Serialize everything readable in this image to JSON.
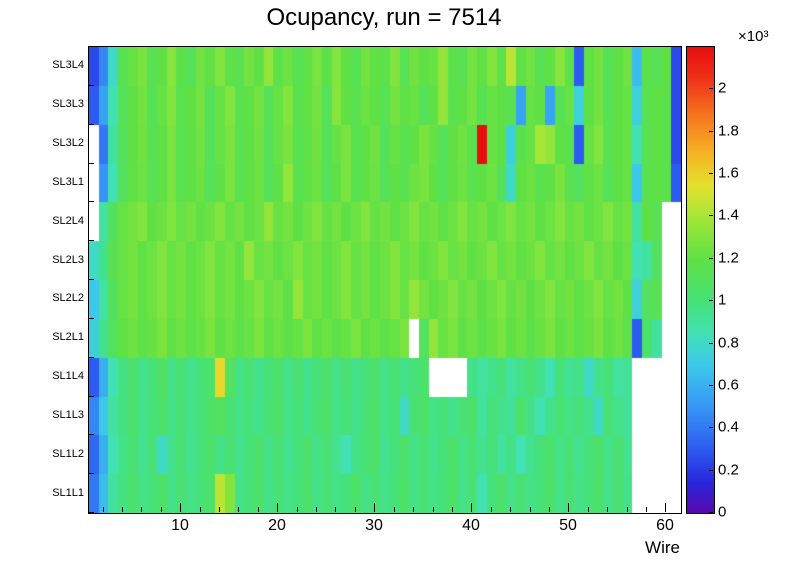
{
  "chart_data": {
    "type": "heatmap",
    "title": "Ocupancy, run = 7514",
    "xlabel": "Wire",
    "ylabel": "",
    "x_range": [
      0.5,
      61.5
    ],
    "n_wires": 61,
    "x_major_ticks": [
      10,
      20,
      30,
      40,
      50,
      60
    ],
    "x_minor_tick_step": 2,
    "y_categories_top_to_bottom": [
      "SL3L4",
      "SL3L3",
      "SL3L2",
      "SL3L1",
      "SL2L4",
      "SL2L3",
      "SL2L2",
      "SL2L1",
      "SL1L4",
      "SL1L3",
      "SL1L2",
      "SL1L1"
    ],
    "z_range": [
      0,
      2.2
    ],
    "z_exponent": "×10³",
    "values_scale": 1000,
    "colorbar_tick_values": [
      0,
      0.2,
      0.4,
      0.6,
      0.8,
      1,
      1.2,
      1.4,
      1.6,
      1.8,
      2
    ],
    "colorbar_tick_labels": [
      "0",
      "0.2",
      "0.4",
      "0.6",
      "0.8",
      "1",
      "1.2",
      "1.4",
      "1.6",
      "1.8",
      "2"
    ],
    "legend_position": "right-colorbar",
    "grid": false,
    "empty_bin_color": "#ffffff",
    "palette_stops": [
      [
        0.0,
        "#5A08AA"
      ],
      [
        0.15,
        "#2828DC"
      ],
      [
        0.3,
        "#2D5AF0"
      ],
      [
        0.5,
        "#3796F5"
      ],
      [
        0.7,
        "#3CC8EB"
      ],
      [
        0.85,
        "#41E1B4"
      ],
      [
        1.0,
        "#46E178"
      ],
      [
        1.2,
        "#5FE146"
      ],
      [
        1.4,
        "#A5E637"
      ],
      [
        1.55,
        "#E6E12D"
      ],
      [
        1.7,
        "#F5B423"
      ],
      [
        1.9,
        "#F56E1E"
      ],
      [
        2.05,
        "#F03219"
      ],
      [
        2.2,
        "#E60F0F"
      ]
    ],
    "matrix": {
      "SL3L4": [
        0.25,
        0.45,
        0.8,
        1.15,
        1.22,
        1.28,
        1.15,
        1.2,
        1.32,
        1.18,
        1.12,
        1.25,
        1.2,
        1.3,
        1.18,
        1.15,
        1.26,
        1.2,
        1.35,
        1.18,
        1.24,
        1.14,
        1.2,
        1.27,
        1.18,
        1.3,
        1.2,
        1.14,
        1.26,
        1.2,
        1.18,
        1.3,
        1.14,
        1.25,
        1.2,
        1.22,
        1.35,
        1.18,
        1.14,
        1.26,
        1.2,
        1.3,
        1.18,
        1.45,
        1.2,
        1.26,
        1.14,
        1.2,
        1.32,
        1.18,
        0.3,
        1.2,
        1.26,
        1.14,
        1.2,
        1.25,
        0.65,
        1.18,
        1.14,
        1.2,
        0.25
      ],
      "SL3L3": [
        0.3,
        0.55,
        0.85,
        1.12,
        1.2,
        1.26,
        1.14,
        1.22,
        1.3,
        1.16,
        1.2,
        1.26,
        1.12,
        1.22,
        1.3,
        1.16,
        1.2,
        1.26,
        1.12,
        1.22,
        1.3,
        1.16,
        1.2,
        1.26,
        1.12,
        1.32,
        1.2,
        1.16,
        1.24,
        1.2,
        1.14,
        1.26,
        1.2,
        1.22,
        1.12,
        1.2,
        1.35,
        1.16,
        1.2,
        1.26,
        1.14,
        1.22,
        1.2,
        1.16,
        0.55,
        1.22,
        1.2,
        0.55,
        1.14,
        1.22,
        0.75,
        1.2,
        1.26,
        1.14,
        1.2,
        1.22,
        0.75,
        1.16,
        1.2,
        1.18,
        0.25
      ],
      "SL3L2": [
        null,
        0.4,
        0.9,
        1.12,
        1.2,
        1.25,
        1.15,
        1.2,
        1.28,
        1.16,
        1.2,
        1.25,
        1.12,
        1.22,
        1.28,
        1.16,
        1.2,
        1.25,
        1.12,
        1.22,
        1.28,
        1.16,
        1.2,
        1.25,
        1.12,
        1.22,
        1.28,
        1.16,
        1.2,
        1.25,
        1.12,
        1.22,
        1.16,
        1.2,
        1.28,
        1.22,
        1.12,
        1.2,
        1.25,
        1.16,
        2.2,
        1.22,
        1.2,
        0.75,
        1.16,
        1.22,
        1.4,
        1.35,
        1.2,
        1.16,
        0.3,
        1.22,
        1.3,
        1.16,
        1.2,
        1.22,
        0.85,
        1.16,
        1.2,
        1.18,
        0.25
      ],
      "SL3L1": [
        null,
        0.5,
        0.85,
        1.1,
        1.2,
        1.24,
        1.14,
        1.2,
        1.28,
        1.16,
        1.2,
        1.24,
        1.12,
        1.2,
        1.28,
        1.16,
        1.2,
        1.24,
        1.12,
        1.2,
        1.35,
        1.16,
        1.2,
        1.24,
        1.12,
        1.2,
        1.28,
        1.16,
        1.2,
        1.24,
        1.12,
        1.2,
        1.16,
        1.24,
        1.28,
        1.2,
        1.12,
        1.2,
        1.24,
        1.16,
        1.2,
        1.24,
        1.12,
        0.8,
        1.2,
        1.24,
        1.16,
        1.2,
        1.28,
        1.16,
        1.1,
        1.2,
        1.24,
        1.12,
        1.2,
        1.22,
        0.7,
        1.16,
        1.2,
        1.18,
        0.3
      ],
      "SL2L4": [
        null,
        0.9,
        1.1,
        1.22,
        1.26,
        1.3,
        1.2,
        1.24,
        1.3,
        1.22,
        1.26,
        1.2,
        1.24,
        1.3,
        1.22,
        1.26,
        1.2,
        1.24,
        1.35,
        1.22,
        1.26,
        1.2,
        1.24,
        1.3,
        1.22,
        1.26,
        1.2,
        1.24,
        1.3,
        1.22,
        1.26,
        1.2,
        1.24,
        1.3,
        1.22,
        1.26,
        1.2,
        1.24,
        1.3,
        1.22,
        1.26,
        1.2,
        1.24,
        1.3,
        1.22,
        1.26,
        1.2,
        1.24,
        1.3,
        1.22,
        1.26,
        1.2,
        1.24,
        1.3,
        1.22,
        1.26,
        0.9,
        1.2,
        1.15,
        null,
        null
      ],
      "SL2L3": [
        0.8,
        0.95,
        1.15,
        1.22,
        1.26,
        1.2,
        1.24,
        1.3,
        1.22,
        1.26,
        1.2,
        1.24,
        1.3,
        1.22,
        1.26,
        1.2,
        1.35,
        1.22,
        1.26,
        1.2,
        1.24,
        1.3,
        1.22,
        1.26,
        1.2,
        1.24,
        1.3,
        1.22,
        1.26,
        1.2,
        1.24,
        1.3,
        1.22,
        1.26,
        1.2,
        1.24,
        1.3,
        1.22,
        1.26,
        1.2,
        1.24,
        1.3,
        1.22,
        1.26,
        1.2,
        1.24,
        1.3,
        1.22,
        1.26,
        1.2,
        1.24,
        1.3,
        1.22,
        1.26,
        1.2,
        1.24,
        0.85,
        0.9,
        1.1,
        null,
        null
      ],
      "SL2L2": [
        0.7,
        0.9,
        1.1,
        1.22,
        1.26,
        1.2,
        1.24,
        1.3,
        1.22,
        1.26,
        1.2,
        1.24,
        1.3,
        1.22,
        1.26,
        1.2,
        1.24,
        1.3,
        1.22,
        1.26,
        1.2,
        1.35,
        1.22,
        1.26,
        1.2,
        1.24,
        1.3,
        1.22,
        1.26,
        1.2,
        1.24,
        1.3,
        1.22,
        1.35,
        1.26,
        1.2,
        1.24,
        1.3,
        1.22,
        1.26,
        1.2,
        1.24,
        1.3,
        1.22,
        1.26,
        1.2,
        1.24,
        1.3,
        1.22,
        1.26,
        1.2,
        1.24,
        1.3,
        1.22,
        1.26,
        1.2,
        0.75,
        1.1,
        1.15,
        null,
        null
      ],
      "SL2L1": [
        0.75,
        0.95,
        1.1,
        1.2,
        1.24,
        1.18,
        1.22,
        1.28,
        1.2,
        1.24,
        1.18,
        1.22,
        1.28,
        1.2,
        1.24,
        1.18,
        1.22,
        1.28,
        1.2,
        1.24,
        1.18,
        1.22,
        1.28,
        1.2,
        1.24,
        1.18,
        1.22,
        1.28,
        1.2,
        1.24,
        1.18,
        1.22,
        1.28,
        null,
        1.1,
        1.35,
        1.22,
        1.28,
        1.2,
        1.24,
        1.18,
        1.22,
        1.28,
        1.2,
        1.24,
        1.18,
        1.22,
        1.28,
        1.2,
        1.24,
        1.18,
        1.22,
        1.28,
        1.2,
        1.24,
        1.18,
        0.3,
        1.05,
        0.9,
        null,
        null
      ],
      "SL1L4": [
        0.3,
        0.6,
        0.85,
        0.98,
        1.05,
        0.95,
        1.0,
        1.08,
        0.96,
        1.02,
        0.95,
        1.0,
        1.05,
        1.58,
        1.1,
        0.96,
        1.02,
        0.95,
        1.0,
        1.05,
        0.96,
        1.02,
        0.95,
        1.0,
        1.05,
        0.96,
        1.02,
        0.95,
        1.0,
        1.05,
        0.96,
        1.02,
        0.95,
        1.0,
        1.05,
        null,
        null,
        null,
        null,
        0.96,
        0.9,
        0.95,
        1.0,
        0.9,
        0.96,
        1.02,
        0.95,
        0.85,
        1.0,
        0.92,
        0.96,
        0.8,
        0.95,
        1.0,
        0.9,
        0.92,
        null,
        null,
        null,
        null,
        null
      ],
      "SL1L3": [
        0.45,
        0.7,
        0.9,
        0.98,
        1.05,
        0.95,
        1.0,
        1.06,
        0.96,
        1.02,
        0.95,
        1.0,
        1.06,
        1.1,
        1.02,
        0.96,
        1.0,
        0.95,
        1.02,
        1.06,
        0.96,
        1.0,
        0.95,
        1.02,
        1.06,
        0.96,
        1.0,
        0.95,
        1.02,
        1.06,
        0.96,
        1.0,
        0.8,
        1.02,
        1.06,
        0.96,
        1.0,
        0.95,
        1.02,
        1.06,
        0.9,
        1.0,
        0.95,
        0.92,
        1.06,
        0.96,
        0.85,
        0.95,
        1.02,
        0.96,
        1.0,
        0.95,
        0.8,
        1.02,
        0.96,
        0.92,
        null,
        null,
        null,
        null,
        null
      ],
      "SL1L2": [
        0.35,
        0.6,
        0.85,
        0.96,
        1.02,
        0.94,
        1.0,
        0.8,
        0.95,
        1.02,
        0.94,
        1.0,
        1.05,
        0.96,
        1.02,
        0.94,
        1.0,
        1.05,
        0.96,
        1.02,
        0.94,
        1.0,
        1.05,
        0.96,
        1.02,
        0.94,
        0.85,
        0.96,
        1.02,
        1.05,
        0.94,
        1.0,
        1.05,
        0.96,
        1.02,
        0.94,
        1.0,
        1.05,
        0.96,
        1.02,
        0.94,
        1.0,
        0.9,
        0.96,
        0.85,
        0.94,
        1.0,
        1.05,
        0.96,
        1.02,
        0.94,
        1.0,
        1.05,
        0.96,
        1.02,
        0.94,
        null,
        null,
        null,
        null,
        null
      ],
      "SL1L1": [
        0.4,
        0.65,
        0.9,
        0.98,
        1.04,
        0.96,
        1.0,
        1.06,
        0.96,
        1.02,
        0.96,
        1.0,
        1.06,
        1.45,
        1.3,
        0.96,
        1.0,
        1.06,
        0.96,
        1.02,
        0.96,
        1.0,
        1.06,
        0.96,
        1.02,
        0.96,
        1.0,
        1.06,
        0.96,
        1.02,
        0.96,
        1.0,
        1.06,
        0.96,
        1.02,
        0.96,
        1.0,
        1.06,
        0.96,
        1.02,
        0.85,
        1.0,
        1.06,
        0.96,
        1.02,
        0.96,
        1.0,
        1.06,
        0.96,
        1.02,
        0.96,
        1.0,
        1.06,
        0.96,
        1.02,
        0.96,
        null,
        null,
        null,
        null,
        null
      ]
    }
  }
}
